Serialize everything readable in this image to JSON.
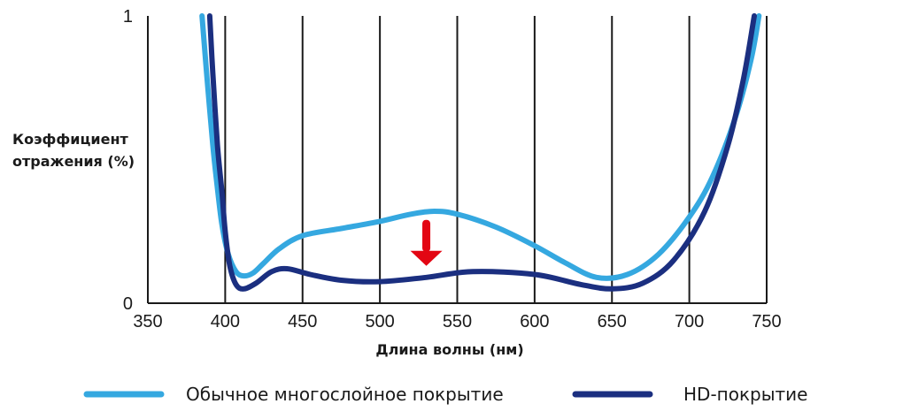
{
  "chart_data": {
    "type": "line",
    "title": "",
    "xlabel": "Длина волны (нм)",
    "ylabel_lines": [
      "Коэффициент",
      "отражения (%)"
    ],
    "xlim": [
      350,
      750
    ],
    "ylim": [
      0,
      1
    ],
    "x_ticks": [
      350,
      400,
      450,
      500,
      550,
      600,
      650,
      700,
      750
    ],
    "y_ticks": [
      0,
      1
    ],
    "grid": "vertical",
    "legend_position": "bottom",
    "annotations": [
      {
        "type": "arrow-down",
        "x": 530,
        "y_from": 0.29,
        "y_to": 0.13,
        "color": "#e30613"
      }
    ],
    "series": [
      {
        "name": "Обычное многослойное покрытие",
        "color": "#35a8e0",
        "points": [
          [
            385,
            1.0
          ],
          [
            388,
            0.8
          ],
          [
            392,
            0.55
          ],
          [
            395,
            0.4
          ],
          [
            398,
            0.27
          ],
          [
            402,
            0.17
          ],
          [
            407,
            0.11
          ],
          [
            412,
            0.095
          ],
          [
            418,
            0.105
          ],
          [
            425,
            0.14
          ],
          [
            435,
            0.19
          ],
          [
            450,
            0.235
          ],
          [
            475,
            0.26
          ],
          [
            500,
            0.285
          ],
          [
            520,
            0.31
          ],
          [
            535,
            0.32
          ],
          [
            550,
            0.31
          ],
          [
            575,
            0.265
          ],
          [
            600,
            0.2
          ],
          [
            620,
            0.14
          ],
          [
            640,
            0.09
          ],
          [
            660,
            0.1
          ],
          [
            680,
            0.17
          ],
          [
            700,
            0.3
          ],
          [
            715,
            0.44
          ],
          [
            730,
            0.65
          ],
          [
            740,
            0.85
          ],
          [
            745,
            1.0
          ]
        ]
      },
      {
        "name": "HD-покрытие",
        "color": "#1b2f80",
        "points": [
          [
            390,
            1.0
          ],
          [
            392,
            0.8
          ],
          [
            395,
            0.55
          ],
          [
            398,
            0.38
          ],
          [
            400,
            0.25
          ],
          [
            403,
            0.13
          ],
          [
            407,
            0.065
          ],
          [
            412,
            0.05
          ],
          [
            420,
            0.07
          ],
          [
            430,
            0.11
          ],
          [
            440,
            0.12
          ],
          [
            455,
            0.1
          ],
          [
            475,
            0.08
          ],
          [
            500,
            0.075
          ],
          [
            530,
            0.09
          ],
          [
            560,
            0.11
          ],
          [
            600,
            0.1
          ],
          [
            630,
            0.065
          ],
          [
            650,
            0.05
          ],
          [
            670,
            0.07
          ],
          [
            690,
            0.15
          ],
          [
            710,
            0.32
          ],
          [
            725,
            0.55
          ],
          [
            735,
            0.78
          ],
          [
            742,
            1.0
          ]
        ]
      }
    ]
  }
}
